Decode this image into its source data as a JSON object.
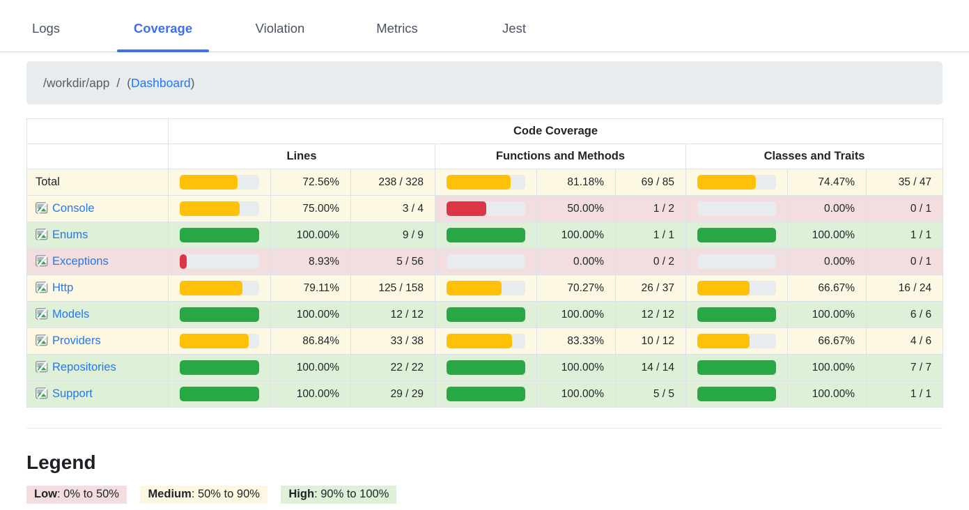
{
  "tabs": [
    {
      "label": "Logs",
      "active": false
    },
    {
      "label": "Coverage",
      "active": true
    },
    {
      "label": "Violation",
      "active": false
    },
    {
      "label": "Metrics",
      "active": false
    },
    {
      "label": "Jest",
      "active": false
    }
  ],
  "breadcrumb": {
    "path": "/workdir/app",
    "separator": "/",
    "open_paren": "(",
    "link": "Dashboard",
    "close_paren": ")"
  },
  "table": {
    "title": "Code Coverage",
    "groups": [
      "Lines",
      "Functions and Methods",
      "Classes and Traits"
    ],
    "rows": [
      {
        "name": "Total",
        "is_link": false,
        "icon": false,
        "name_level": "medium",
        "metrics": [
          {
            "level": "medium",
            "percent": 72.56,
            "percent_label": "72.56%",
            "fraction": "238 / 328"
          },
          {
            "level": "medium",
            "percent": 81.18,
            "percent_label": "81.18%",
            "fraction": "69 / 85"
          },
          {
            "level": "medium",
            "percent": 74.47,
            "percent_label": "74.47%",
            "fraction": "35 / 47"
          }
        ]
      },
      {
        "name": "Console",
        "is_link": true,
        "icon": true,
        "name_level": "medium",
        "metrics": [
          {
            "level": "medium",
            "percent": 75.0,
            "percent_label": "75.00%",
            "fraction": "3 / 4"
          },
          {
            "level": "low",
            "percent": 50.0,
            "percent_label": "50.00%",
            "fraction": "1 / 2"
          },
          {
            "level": "low",
            "percent": 0.0,
            "percent_label": "0.00%",
            "fraction": "0 / 1"
          }
        ]
      },
      {
        "name": "Enums",
        "is_link": true,
        "icon": true,
        "name_level": "high",
        "metrics": [
          {
            "level": "high",
            "percent": 100.0,
            "percent_label": "100.00%",
            "fraction": "9 / 9"
          },
          {
            "level": "high",
            "percent": 100.0,
            "percent_label": "100.00%",
            "fraction": "1 / 1"
          },
          {
            "level": "high",
            "percent": 100.0,
            "percent_label": "100.00%",
            "fraction": "1 / 1"
          }
        ]
      },
      {
        "name": "Exceptions",
        "is_link": true,
        "icon": true,
        "name_level": "low",
        "metrics": [
          {
            "level": "low",
            "percent": 8.93,
            "percent_label": "8.93%",
            "fraction": "5 / 56"
          },
          {
            "level": "low",
            "percent": 0.0,
            "percent_label": "0.00%",
            "fraction": "0 / 2"
          },
          {
            "level": "low",
            "percent": 0.0,
            "percent_label": "0.00%",
            "fraction": "0 / 1"
          }
        ]
      },
      {
        "name": "Http",
        "is_link": true,
        "icon": true,
        "name_level": "medium",
        "metrics": [
          {
            "level": "medium",
            "percent": 79.11,
            "percent_label": "79.11%",
            "fraction": "125 / 158"
          },
          {
            "level": "medium",
            "percent": 70.27,
            "percent_label": "70.27%",
            "fraction": "26 / 37"
          },
          {
            "level": "medium",
            "percent": 66.67,
            "percent_label": "66.67%",
            "fraction": "16 / 24"
          }
        ]
      },
      {
        "name": "Models",
        "is_link": true,
        "icon": true,
        "name_level": "high",
        "metrics": [
          {
            "level": "high",
            "percent": 100.0,
            "percent_label": "100.00%",
            "fraction": "12 / 12"
          },
          {
            "level": "high",
            "percent": 100.0,
            "percent_label": "100.00%",
            "fraction": "12 / 12"
          },
          {
            "level": "high",
            "percent": 100.0,
            "percent_label": "100.00%",
            "fraction": "6 / 6"
          }
        ]
      },
      {
        "name": "Providers",
        "is_link": true,
        "icon": true,
        "name_level": "medium",
        "metrics": [
          {
            "level": "medium",
            "percent": 86.84,
            "percent_label": "86.84%",
            "fraction": "33 / 38"
          },
          {
            "level": "medium",
            "percent": 83.33,
            "percent_label": "83.33%",
            "fraction": "10 / 12"
          },
          {
            "level": "medium",
            "percent": 66.67,
            "percent_label": "66.67%",
            "fraction": "4 / 6"
          }
        ]
      },
      {
        "name": "Repositories",
        "is_link": true,
        "icon": true,
        "name_level": "high",
        "metrics": [
          {
            "level": "high",
            "percent": 100.0,
            "percent_label": "100.00%",
            "fraction": "22 / 22"
          },
          {
            "level": "high",
            "percent": 100.0,
            "percent_label": "100.00%",
            "fraction": "14 / 14"
          },
          {
            "level": "high",
            "percent": 100.0,
            "percent_label": "100.00%",
            "fraction": "7 / 7"
          }
        ]
      },
      {
        "name": "Support",
        "is_link": true,
        "icon": true,
        "name_level": "high",
        "metrics": [
          {
            "level": "high",
            "percent": 100.0,
            "percent_label": "100.00%",
            "fraction": "29 / 29"
          },
          {
            "level": "high",
            "percent": 100.0,
            "percent_label": "100.00%",
            "fraction": "5 / 5"
          },
          {
            "level": "high",
            "percent": 100.0,
            "percent_label": "100.00%",
            "fraction": "1 / 1"
          }
        ]
      }
    ]
  },
  "legend": {
    "title": "Legend",
    "items": [
      {
        "label": "Low",
        "range": ": 0% to 50%",
        "level": "low"
      },
      {
        "label": "Medium",
        "range": ": 50% to 90%",
        "level": "medium"
      },
      {
        "label": "High",
        "range": ": 90% to 100%",
        "level": "high"
      }
    ]
  },
  "icons": {
    "row_icon": "broken-image-icon"
  },
  "colors": {
    "accent_blue": "#3c6ff6",
    "link_blue": "#2178f4",
    "low_bg": "#f2dede",
    "medium_bg": "#fcf8e3",
    "high_bg": "#dff0d8",
    "low_bar": "#dc3545",
    "medium_bar": "#ffc107",
    "high_bar": "#28a745",
    "track": "#e9ecef",
    "border": "#dee2e6"
  }
}
